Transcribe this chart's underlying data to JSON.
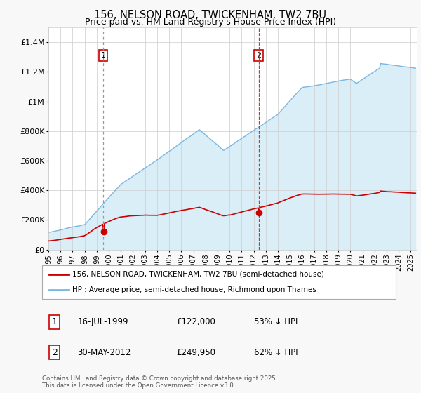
{
  "title": "156, NELSON ROAD, TWICKENHAM, TW2 7BU",
  "subtitle": "Price paid vs. HM Land Registry's House Price Index (HPI)",
  "title_fontsize": 10.5,
  "subtitle_fontsize": 9,
  "ylim": [
    0,
    1500000
  ],
  "yticks": [
    0,
    200000,
    400000,
    600000,
    800000,
    1000000,
    1200000,
    1400000
  ],
  "ytick_labels": [
    "£0",
    "£200K",
    "£400K",
    "£600K",
    "£800K",
    "£1M",
    "£1.2M",
    "£1.4M"
  ],
  "background_color": "#f8f8f8",
  "plot_bg_color": "#ffffff",
  "hpi_color": "#7ab8e0",
  "hpi_fill_color": "#daeef8",
  "price_color": "#cc0000",
  "grid_color": "#cccccc",
  "sale1_line_color": "#999999",
  "sale2_line_color": "#cc3333",
  "annotation_box_color": "#cc0000",
  "sale1_year": 1999.54,
  "sale1_price": 122000,
  "sale1_hpi_pct": "53%",
  "sale1_date": "16-JUL-1999",
  "sale2_year": 2012.41,
  "sale2_price": 249950,
  "sale2_hpi_pct": "62%",
  "sale2_date": "30-MAY-2012",
  "legend_label1": "156, NELSON ROAD, TWICKENHAM, TW2 7BU (semi-detached house)",
  "legend_label2": "HPI: Average price, semi-detached house, Richmond upon Thames",
  "footer": "Contains HM Land Registry data © Crown copyright and database right 2025.\nThis data is licensed under the Open Government Licence v3.0.",
  "xlabel_fontsize": 7,
  "ylabel_fontsize": 8
}
